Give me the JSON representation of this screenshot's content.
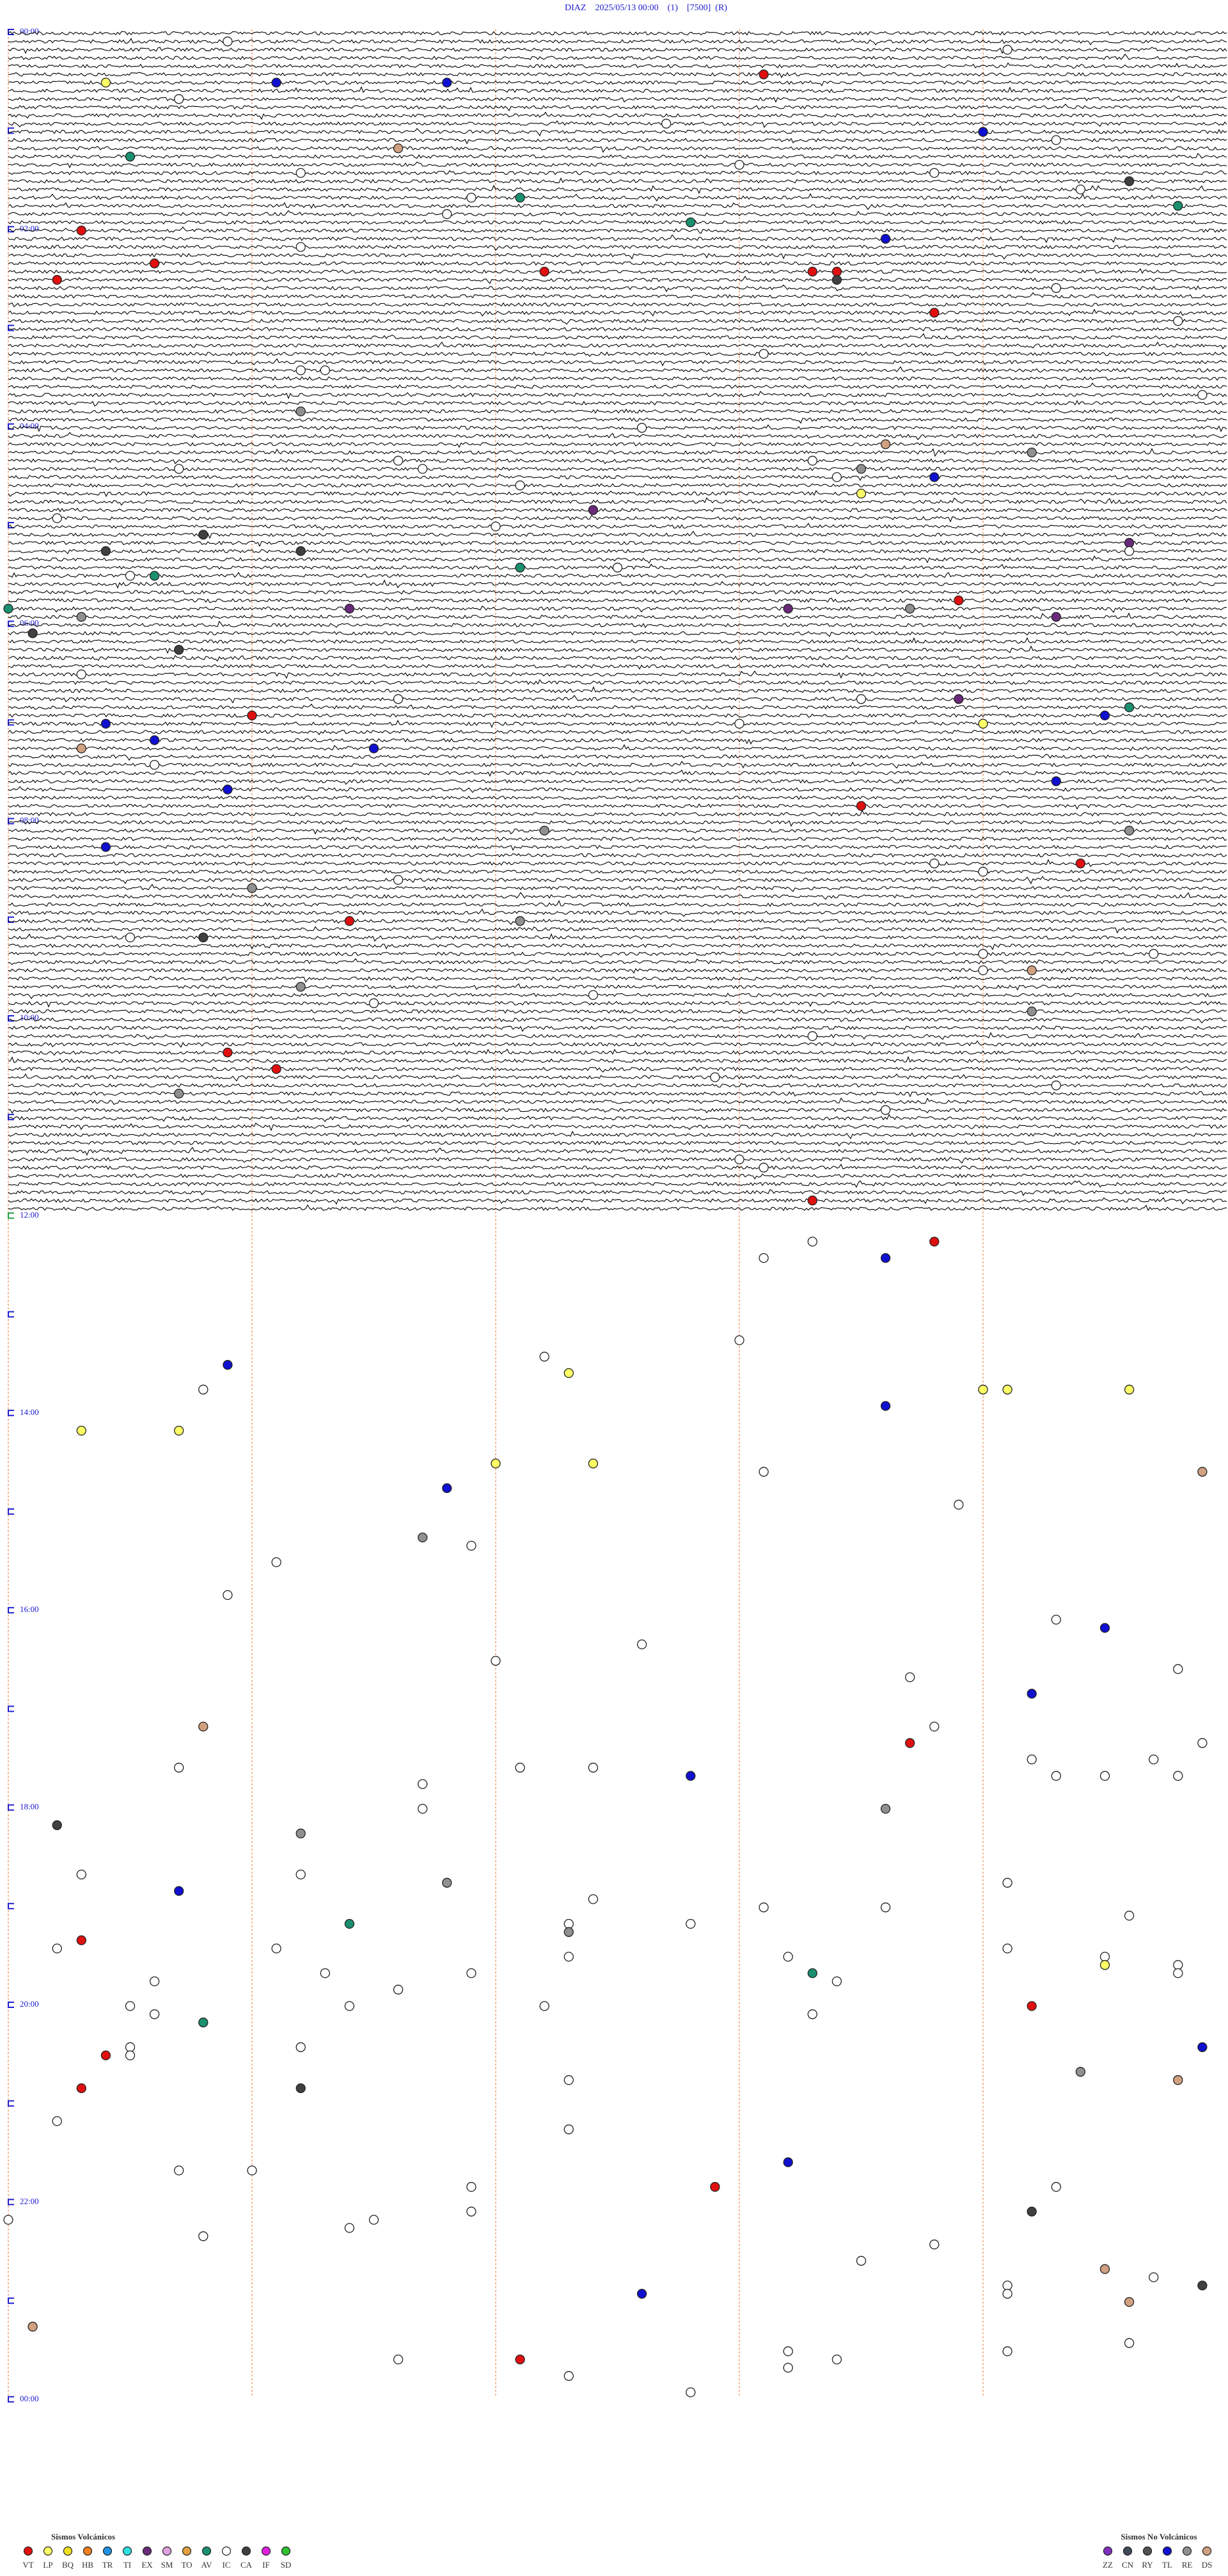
{
  "header": {
    "title": "DIAZ    2025/05/13 00:00    (1)    [7500]  (R)"
  },
  "time_labels": [
    "00:00",
    "02:00",
    "04:00",
    "06:00",
    "08:00",
    "10:00",
    "12:00",
    "14:00",
    "16:00",
    "18:00",
    "20:00",
    "22:00",
    "00:00"
  ],
  "events": [
    [
      30.4,
      "LP"
    ],
    [
      31.1,
      "TL"
    ],
    [
      31.8,
      "TL"
    ],
    [
      28.1,
      "VT"
    ],
    [
      14.1,
      "IC"
    ],
    [
      5.9,
      "IC"
    ],
    [
      40.7,
      "IC"
    ],
    [
      57.7,
      "IC"
    ],
    [
      64.0,
      "TL"
    ],
    [
      69.3,
      "IC"
    ],
    [
      71.6,
      "DS"
    ],
    [
      75.5,
      "AV"
    ],
    [
      83.0,
      "IC"
    ],
    [
      86.2,
      "IC"
    ],
    [
      88.8,
      "IC"
    ],
    [
      94.6,
      "CA"
    ],
    [
      99.4,
      "IC"
    ],
    [
      102.1,
      "AV"
    ],
    [
      101.9,
      "IC"
    ],
    [
      109.8,
      "AV"
    ],
    [
      111.8,
      "IC"
    ],
    [
      117.8,
      "AV"
    ],
    [
      120.3,
      "VT"
    ],
    [
      128.6,
      "TL"
    ],
    [
      131.2,
      "IC"
    ],
    [
      140.6,
      "VT"
    ],
    [
      147.2,
      "VT"
    ],
    [
      148.3,
      "VT"
    ],
    [
      148.4,
      "VT"
    ],
    [
      150.2,
      "VT"
    ],
    [
      153.4,
      "CA"
    ],
    [
      159.3,
      "IC"
    ],
    [
      173.8,
      "VT"
    ],
    [
      179.8,
      "IC"
    ],
    [
      198.1,
      "IC"
    ],
    [
      206.2,
      "IC"
    ],
    [
      206.3,
      "IC"
    ],
    [
      231.2,
      "RE"
    ],
    [
      224.9,
      "IC"
    ],
    [
      242.6,
      "IC"
    ],
    [
      253.6,
      "DS"
    ],
    [
      259.2,
      "RE"
    ],
    [
      261.6,
      "IC"
    ],
    [
      263.3,
      "IC"
    ],
    [
      265.7,
      "IC"
    ],
    [
      266.7,
      "IC"
    ],
    [
      268.5,
      "RE"
    ],
    [
      273.4,
      "IC"
    ],
    [
      273.8,
      "TL"
    ],
    [
      277.1,
      "IC"
    ],
    [
      283.5,
      "LP"
    ],
    [
      292.4,
      "EX"
    ],
    [
      295.2,
      "IC"
    ],
    [
      302.0,
      "IC"
    ],
    [
      305.8,
      "CA"
    ],
    [
      314.6,
      "EX"
    ],
    [
      315.4,
      "CA"
    ],
    [
      316.2,
      "CA"
    ],
    [
      319.6,
      "IC"
    ],
    [
      327.1,
      "AV"
    ],
    [
      327.5,
      "IC"
    ],
    [
      330.5,
      "IC"
    ],
    [
      330.6,
      "AV"
    ],
    [
      348.9,
      "VT"
    ],
    [
      350.0,
      "AV"
    ],
    [
      351.4,
      "EX"
    ],
    [
      353.2,
      "EX"
    ],
    [
      353.7,
      "RE"
    ],
    [
      355.3,
      "RE"
    ],
    [
      359.3,
      "EX"
    ],
    [
      365.1,
      "CA"
    ],
    [
      375.7,
      "CA"
    ],
    [
      390.3,
      "IC"
    ],
    [
      406.6,
      "IC"
    ],
    [
      408.5,
      "IC"
    ],
    [
      408.9,
      "EX"
    ],
    [
      414.6,
      "AV"
    ],
    [
      416.0,
      "VT"
    ],
    [
      419.5,
      "TL"
    ],
    [
      420.4,
      "TL"
    ],
    [
      423.0,
      "IC"
    ],
    [
      424.0,
      "LP"
    ],
    [
      430.6,
      "TL"
    ],
    [
      435.3,
      "DS"
    ],
    [
      436.5,
      "TL"
    ],
    [
      445.6,
      "IC"
    ],
    [
      459.3,
      "TL"
    ],
    [
      460.9,
      "TL"
    ],
    [
      473.5,
      "VT"
    ],
    [
      487.2,
      "RE"
    ],
    [
      489.6,
      "RE"
    ],
    [
      495.4,
      "TL"
    ],
    [
      508.8,
      "IC"
    ],
    [
      509.4,
      "VT"
    ],
    [
      514.0,
      "IC"
    ],
    [
      516.6,
      "IC"
    ],
    [
      521.0,
      "RE"
    ],
    [
      541.4,
      "VT"
    ],
    [
      542.1,
      "RE"
    ],
    [
      550.5,
      "IC"
    ],
    [
      550.8,
      "CA"
    ],
    [
      564.0,
      "IC"
    ],
    [
      564.7,
      "IC"
    ],
    [
      574.0,
      "IC"
    ],
    [
      574.2,
      "DS"
    ],
    [
      581.2,
      "RE"
    ],
    [
      587.4,
      "IC"
    ],
    [
      591.5,
      "IC"
    ],
    [
      599.2,
      "RE"
    ],
    [
      613.3,
      "IC"
    ],
    [
      620.9,
      "VT"
    ],
    [
      631.1,
      "VT"
    ],
    [
      637.9,
      "IC"
    ],
    [
      644.3,
      "IC"
    ],
    [
      645.7,
      "RE"
    ],
    [
      658.6,
      "IC"
    ],
    [
      688.0,
      "IC"
    ],
    [
      693.1,
      "IC"
    ],
    [
      713.3,
      "VT"
    ],
    [
      738.3,
      "IC"
    ],
    [
      738.8,
      "VT"
    ],
    [
      748.1,
      "IC"
    ],
    [
      748.6,
      "TL"
    ],
    [
      798.0,
      "IC"
    ],
    [
      807.2,
      "IC"
    ],
    [
      810.9,
      "TL"
    ],
    [
      817.3,
      "LP"
    ],
    [
      825.8,
      "IC"
    ],
    [
      829.0,
      "LP"
    ],
    [
      829.1,
      "LP"
    ],
    [
      829.6,
      "LP"
    ],
    [
      838.6,
      "TL"
    ],
    [
      850.3,
      "LP"
    ],
    [
      850.7,
      "LP"
    ],
    [
      872.0,
      "LP"
    ],
    [
      872.4,
      "LP"
    ],
    [
      878.1,
      "IC"
    ],
    [
      879.9,
      "DS"
    ],
    [
      886.8,
      "TL"
    ],
    [
      898.9,
      "IC"
    ],
    [
      916.7,
      "RE"
    ],
    [
      921.9,
      "IC"
    ],
    [
      931.1,
      "IC"
    ],
    [
      950.9,
      "IC"
    ],
    [
      969.3,
      "IC"
    ],
    [
      974.5,
      "TL"
    ],
    [
      982.6,
      "IC"
    ],
    [
      992.0,
      "IC"
    ],
    [
      999.8,
      "IC"
    ],
    [
      1003.7,
      "IC"
    ],
    [
      1014.2,
      "TL"
    ],
    [
      1030.8,
      "DS"
    ],
    [
      1033.8,
      "IC"
    ],
    [
      1043.7,
      "VT"
    ],
    [
      1044.9,
      "IC"
    ],
    [
      1054.2,
      "IC"
    ],
    [
      1054.7,
      "IC"
    ],
    [
      1055.7,
      "IC"
    ],
    [
      1057.1,
      "IC"
    ],
    [
      1057.4,
      "IC"
    ],
    [
      1062.8,
      "TL"
    ],
    [
      1064.3,
      "IC"
    ],
    [
      1064.5,
      "IC"
    ],
    [
      1064.8,
      "IC"
    ],
    [
      1066.7,
      "IC"
    ],
    [
      1081.7,
      "IC"
    ],
    [
      1083.6,
      "RE"
    ],
    [
      1090.2,
      "CA"
    ],
    [
      1096.2,
      "RE"
    ],
    [
      1120.3,
      "IC"
    ],
    [
      1121.2,
      "IC"
    ],
    [
      1126.8,
      "RE"
    ],
    [
      1129.1,
      "IC"
    ],
    [
      1130.7,
      "TL"
    ],
    [
      1137.4,
      "IC"
    ],
    [
      1143.1,
      "IC"
    ],
    [
      1143.6,
      "IC"
    ],
    [
      1149.6,
      "IC"
    ],
    [
      1151.4,
      "AV"
    ],
    [
      1152.3,
      "IC"
    ],
    [
      1152.8,
      "IC"
    ],
    [
      1157.3,
      "RE"
    ],
    [
      1160.3,
      "VT"
    ],
    [
      1165.2,
      "IC"
    ],
    [
      1166.1,
      "IC"
    ],
    [
      1169.1,
      "IC"
    ],
    [
      1172.3,
      "IC"
    ],
    [
      1173.2,
      "IC"
    ],
    [
      1174.5,
      "IC"
    ],
    [
      1179.5,
      "LP"
    ],
    [
      1179.8,
      "IC"
    ],
    [
      1181.3,
      "IC"
    ],
    [
      1181.9,
      "IC"
    ],
    [
      1183.3,
      "AV"
    ],
    [
      1184.8,
      "IC"
    ],
    [
      1185.6,
      "IC"
    ],
    [
      1188.4,
      "IC"
    ],
    [
      1191.6,
      "IC"
    ],
    [
      1200.5,
      "IC"
    ],
    [
      1201.4,
      "IC"
    ],
    [
      1202.2,
      "IC"
    ],
    [
      1204.2,
      "VT"
    ],
    [
      1205.6,
      "IC"
    ],
    [
      1208.3,
      "IC"
    ],
    [
      1210.8,
      "AV"
    ],
    [
      1226.2,
      "IC"
    ],
    [
      1225.5,
      "IC"
    ],
    [
      1229.9,
      "TL"
    ],
    [
      1230.4,
      "VT"
    ],
    [
      1230.5,
      "IC"
    ],
    [
      1244.4,
      "RE"
    ],
    [
      1247.3,
      "IC"
    ],
    [
      1249.8,
      "DS"
    ],
    [
      1250.3,
      "VT"
    ],
    [
      1251.2,
      "CA"
    ],
    [
      1270.2,
      "IC"
    ],
    [
      1277.3,
      "IC"
    ],
    [
      1298.2,
      "TL"
    ],
    [
      1300.7,
      "IC"
    ],
    [
      1301.0,
      "IC"
    ],
    [
      1312.9,
      "VT"
    ],
    [
      1311.9,
      "IC"
    ],
    [
      1314.3,
      "IC"
    ],
    [
      1326.9,
      "IC"
    ],
    [
      1329.2,
      "CA"
    ],
    [
      1330.0,
      "IC"
    ],
    [
      1331.5,
      "IC"
    ],
    [
      1336.4,
      "IC"
    ],
    [
      1340.8,
      "IC"
    ],
    [
      1348.8,
      "IC"
    ],
    [
      1358.5,
      "IC"
    ],
    [
      1364.5,
      "DS"
    ],
    [
      1369.7,
      "IC"
    ],
    [
      1374.1,
      "IC"
    ],
    [
      1374.9,
      "CA"
    ],
    [
      1377.6,
      "TL"
    ],
    [
      1379.1,
      "IC"
    ],
    [
      1384.6,
      "DS"
    ],
    [
      1395.1,
      "DS"
    ],
    [
      1409.6,
      "IC"
    ],
    [
      1413.2,
      "IC"
    ],
    [
      1414.1,
      "IC"
    ],
    [
      1416.6,
      "IC"
    ],
    [
      1417.1,
      "VT"
    ],
    [
      1418.4,
      "IC"
    ],
    [
      1423.2,
      "IC"
    ],
    [
      1427.3,
      "IC"
    ],
    [
      1437.8,
      "IC"
    ]
  ],
  "legend": {
    "volcanic": {
      "title": "Sismos Volcánicos",
      "classes": [
        {
          "code": "VT",
          "color": "#e01010"
        },
        {
          "code": "LP",
          "color": "#ffff66"
        },
        {
          "code": "BQ",
          "color": "#f0e020"
        },
        {
          "code": "HB",
          "color": "#f08020"
        },
        {
          "code": "TR",
          "color": "#2090e0"
        },
        {
          "code": "TI",
          "color": "#30e0e0"
        },
        {
          "code": "EX",
          "color": "#6a2a7a"
        },
        {
          "code": "SM",
          "color": "#e0a0e0"
        },
        {
          "code": "TO",
          "color": "#e0a040"
        },
        {
          "code": "AV",
          "color": "#1a9070"
        },
        {
          "code": "IC",
          "color": "#ffffff"
        },
        {
          "code": "CA",
          "color": "#404040"
        },
        {
          "code": "IF",
          "color": "#e020e0"
        },
        {
          "code": "SD",
          "color": "#30c030"
        }
      ]
    },
    "non_volcanic": {
      "title": "Sismos No Volcánicos",
      "classes": [
        {
          "code": "ZZ",
          "color": "#8030c0"
        },
        {
          "code": "CN",
          "color": "#404858"
        },
        {
          "code": "RY",
          "color": "#505050"
        },
        {
          "code": "TL",
          "color": "#1010d0"
        },
        {
          "code": "RE",
          "color": "#909090"
        },
        {
          "code": "DS",
          "color": "#d0a080"
        }
      ]
    }
  }
}
